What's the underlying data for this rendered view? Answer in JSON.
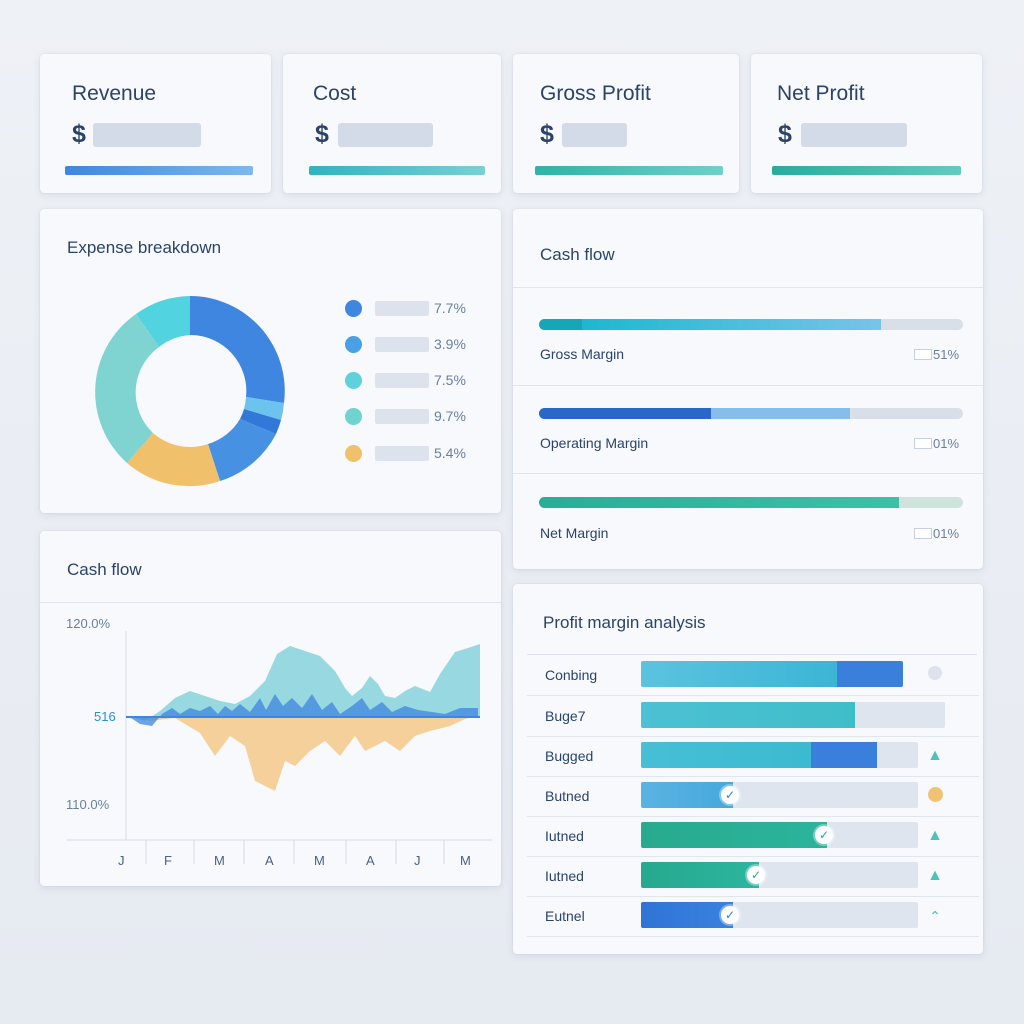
{
  "kpis": [
    {
      "title": "Revenue",
      "currency": "$",
      "bar_color": "#3f86e0"
    },
    {
      "title": "Cost",
      "currency": "$",
      "bar_color": "#33b7c4"
    },
    {
      "title": "Gross Profit",
      "currency": "$",
      "bar_color": "#2fb3a6"
    },
    {
      "title": "Net Profit",
      "currency": "$",
      "bar_color": "#27ad9c"
    }
  ],
  "expense": {
    "title": "Expense breakdown",
    "legend": [
      {
        "value": "7.7%",
        "color": "#3f86e0"
      },
      {
        "value": "3.9%",
        "color": "#4aa0e6"
      },
      {
        "value": "7.5%",
        "color": "#5fd0dc"
      },
      {
        "value": "9.7%",
        "color": "#6fd3cf"
      },
      {
        "value": "5.4%",
        "color": "#f1c06a"
      }
    ]
  },
  "margins": {
    "title": "Cash flow",
    "items": [
      {
        "label": "Gross Margin",
        "value": "51%"
      },
      {
        "label": "Operating Margin",
        "value": "01%"
      },
      {
        "label": "Net Margin",
        "value": "01%"
      }
    ]
  },
  "cashflow": {
    "title": "Cash flow",
    "y_top": "120.0%",
    "y_mid": "516",
    "y_bottom": "110.0%",
    "months": [
      "J",
      "F",
      "M",
      "A",
      "M",
      "A",
      "J",
      "M"
    ]
  },
  "profit": {
    "title": "Profit margin analysis",
    "rows": [
      {
        "label": "Conbing",
        "status": "dot"
      },
      {
        "label": "Buge7",
        "status": "none"
      },
      {
        "label": "Bugged",
        "status": "up"
      },
      {
        "label": "Butned",
        "status": "dot-orange"
      },
      {
        "label": "Iutned",
        "status": "up"
      },
      {
        "label": "Iutned",
        "status": "up"
      },
      {
        "label": "Eutnel",
        "status": "chevron"
      }
    ]
  }
}
